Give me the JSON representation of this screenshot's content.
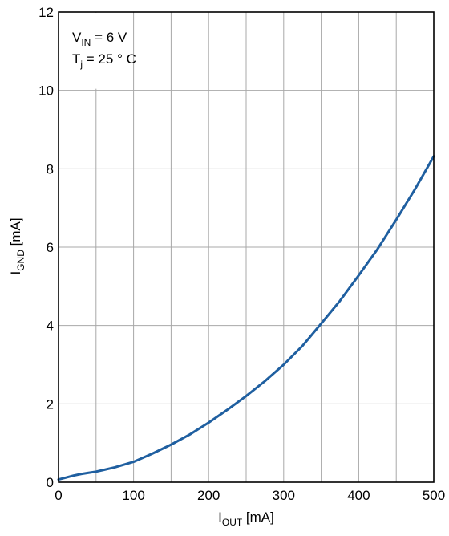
{
  "chart_data": {
    "type": "line",
    "title": "",
    "xlabel": {
      "main": "I",
      "sub": "OUT",
      "unit": " [mA]"
    },
    "ylabel": {
      "main": "I",
      "sub": "GND",
      "unit": " [mA]"
    },
    "xlim": [
      0,
      500
    ],
    "ylim": [
      0,
      12
    ],
    "xticks": [
      0,
      100,
      200,
      300,
      400,
      500
    ],
    "yticks": [
      0,
      2,
      4,
      6,
      8,
      10,
      12
    ],
    "grid": true,
    "annotations": [
      {
        "main": "V",
        "sub": "IN",
        "rest": " = 6 V"
      },
      {
        "main": "T",
        "sub": "j",
        "rest": " = 25 ° C"
      }
    ],
    "colors": {
      "line": "#1f5fa0",
      "grid": "#a8a8a8"
    },
    "series": [
      {
        "x": [
          0,
          10,
          20,
          30,
          40,
          50,
          75,
          100,
          125,
          150,
          175,
          200,
          225,
          250,
          275,
          300,
          325,
          350,
          375,
          400,
          425,
          450,
          475,
          500
        ],
        "y": [
          0.07,
          0.12,
          0.17,
          0.21,
          0.24,
          0.27,
          0.38,
          0.52,
          0.73,
          0.96,
          1.22,
          1.52,
          1.85,
          2.2,
          2.58,
          3.0,
          3.48,
          4.05,
          4.63,
          5.28,
          5.95,
          6.7,
          7.48,
          8.32
        ]
      }
    ]
  }
}
